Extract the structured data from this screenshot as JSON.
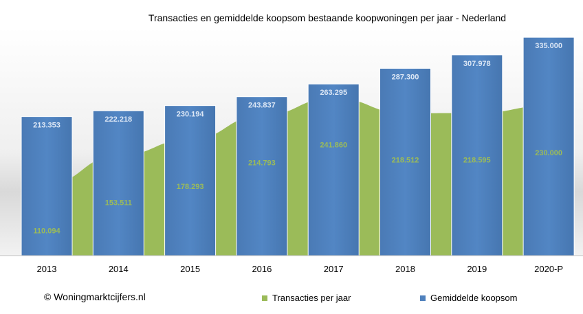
{
  "chart_data": {
    "type": "bar",
    "title": "Transacties en gemiddelde koopsom bestaande koopwoningen per jaar - Nederland",
    "categories": [
      "2013",
      "2014",
      "2015",
      "2016",
      "2017",
      "2018",
      "2019",
      "2020-P"
    ],
    "series": [
      {
        "name": "Transacties per jaar",
        "kind": "area",
        "color": "#9bbb59",
        "values": [
          110094,
          153511,
          178293,
          214793,
          241860,
          218512,
          218595,
          230000
        ],
        "labels": [
          "110.094",
          "153.511",
          "178.293",
          "214.793",
          "241.860",
          "218.512",
          "218.595",
          "230.000"
        ]
      },
      {
        "name": "Gemiddelde koopsom",
        "kind": "bar",
        "color": "#4f81bd",
        "values": [
          213353,
          222218,
          230194,
          243837,
          263295,
          287300,
          307978,
          335000
        ],
        "labels": [
          "213.353",
          "222.218",
          "230.194",
          "243.837",
          "263.295",
          "287.300",
          "307.978",
          "335.000"
        ]
      }
    ],
    "ylim": [
      0,
      350000
    ],
    "legend_position": "bottom",
    "grid": false,
    "source_note": "© Woningmarktcijfers.nl"
  }
}
